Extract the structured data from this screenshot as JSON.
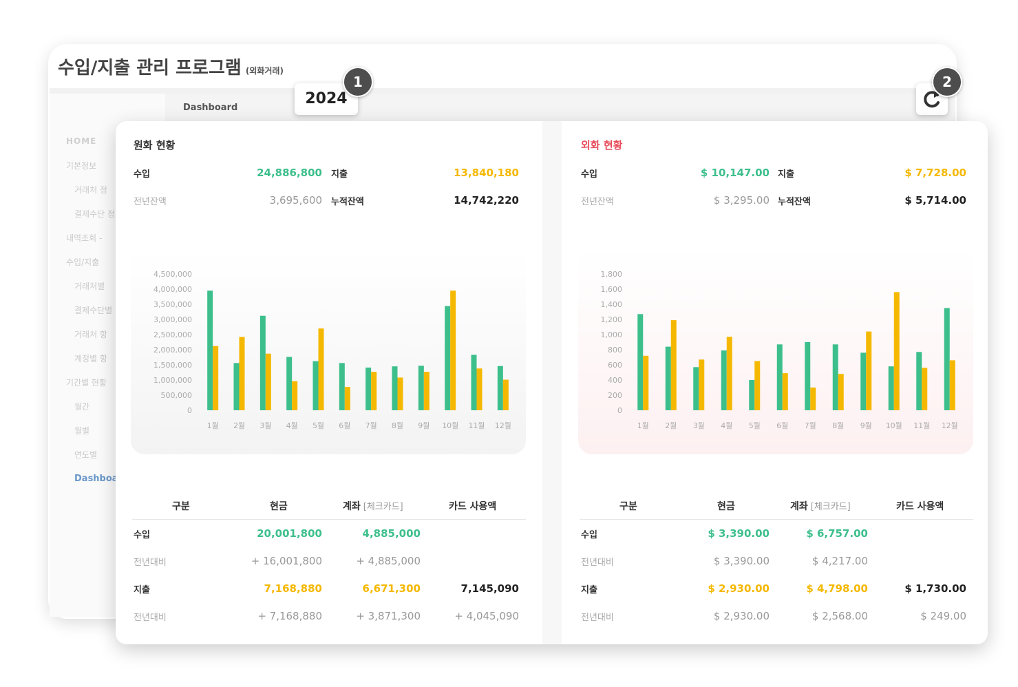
{
  "app": {
    "title": "수입/지출 관리 프로그램",
    "subtitle": "(외화거래)"
  },
  "breadcrumb": "Dashboard",
  "year": "2024",
  "badges": [
    "1",
    "2"
  ],
  "sidebar": {
    "items": [
      {
        "label": "HOME",
        "level": 0
      },
      {
        "label": "기본정보",
        "level": 0
      },
      {
        "label": "거래처 정",
        "level": 1
      },
      {
        "label": "결제수단 정",
        "level": 1
      },
      {
        "label": "내역조회 - ",
        "level": 0
      },
      {
        "label": "수입/지출 ",
        "level": 0
      },
      {
        "label": "거래처별",
        "level": 1
      },
      {
        "label": "결제수단별",
        "level": 1
      },
      {
        "label": "거래처 항",
        "level": 1
      },
      {
        "label": "계정별 항",
        "level": 1
      },
      {
        "label": "기간별 현황",
        "level": 0
      },
      {
        "label": "월간",
        "level": 1
      },
      {
        "label": "월별",
        "level": 1
      },
      {
        "label": "연도별",
        "level": 1
      },
      {
        "label": "Dashboa",
        "level": 1,
        "active": true
      }
    ]
  },
  "colors": {
    "income": "#3dbf8c",
    "expense": "#f5b800",
    "fx_title": "#e84c5a"
  },
  "krw": {
    "title": "원화 현황",
    "summary": {
      "income_label": "수입",
      "income": "24,886,800",
      "expense_label": "지출",
      "expense": "13,840,180",
      "prev_label": "전년잔액",
      "prev": "3,695,600",
      "cum_label": "누적잔액",
      "cum": "14,742,220"
    },
    "table": {
      "headers": [
        "구분",
        "현금",
        "계좌",
        "[체크카드]",
        "카드 사용액"
      ],
      "rows": [
        {
          "label": "수입",
          "cash": "20,001,800",
          "account": "4,885,000",
          "card": ""
        },
        {
          "label": "전년대비",
          "cash": "+ 16,001,800",
          "account": "+ 4,885,000",
          "card": ""
        },
        {
          "label": "지출",
          "cash": "7,168,880",
          "account": "6,671,300",
          "card": "7,145,090"
        },
        {
          "label": "전년대비",
          "cash": "+ 7,168,880",
          "account": "+ 3,871,300",
          "card": "+ 4,045,090"
        }
      ]
    }
  },
  "fx": {
    "title": "외화 현황",
    "summary": {
      "income_label": "수입",
      "income": "$ 10,147.00",
      "expense_label": "지출",
      "expense": "$ 7,728.00",
      "prev_label": "전년잔액",
      "prev": "$ 3,295.00",
      "cum_label": "누적잔액",
      "cum": "$ 5,714.00"
    },
    "table": {
      "headers": [
        "구분",
        "현금",
        "계좌",
        "[체크카드]",
        "카드 사용액"
      ],
      "rows": [
        {
          "label": "수입",
          "cash": "$ 3,390.00",
          "account": "$ 6,757.00",
          "card": ""
        },
        {
          "label": "전년대비",
          "cash": "$ 3,390.00",
          "account": "$ 4,217.00",
          "card": ""
        },
        {
          "label": "지출",
          "cash": "$ 2,930.00",
          "account": "$ 4,798.00",
          "card": "$ 1,730.00"
        },
        {
          "label": "전년대비",
          "cash": "$ 2,930.00",
          "account": "$ 2,568.00",
          "card": "$ 249.00"
        }
      ]
    }
  },
  "chart_data": [
    {
      "type": "bar",
      "categories": [
        "1월",
        "2월",
        "3월",
        "4월",
        "5월",
        "6월",
        "7월",
        "8월",
        "9월",
        "10월",
        "11월",
        "12월"
      ],
      "yticks": [
        "0",
        "500,000",
        "1,000,000",
        "1,500,000",
        "2,000,000",
        "2,500,000",
        "3,000,000",
        "3,500,000",
        "4,000,000",
        "4,500,000"
      ],
      "ylim": [
        0,
        4500000
      ],
      "series": [
        {
          "key": "income",
          "color": "#3dbf8c",
          "values": [
            3950000,
            1560000,
            3120000,
            1760000,
            1620000,
            1560000,
            1410000,
            1450000,
            1470000,
            3440000,
            1830000,
            1460000
          ]
        },
        {
          "key": "expense",
          "color": "#f5b800",
          "values": [
            2120000,
            2420000,
            1870000,
            960000,
            2700000,
            770000,
            1270000,
            1080000,
            1270000,
            3950000,
            1380000,
            1010000
          ]
        }
      ]
    },
    {
      "type": "bar",
      "categories": [
        "1월",
        "2월",
        "3월",
        "4월",
        "5월",
        "6월",
        "7월",
        "8월",
        "9월",
        "10월",
        "11월",
        "12월"
      ],
      "yticks": [
        "0",
        "200",
        "400",
        "600",
        "800",
        "1,000",
        "1,200",
        "1,400",
        "1,600",
        "1,800"
      ],
      "ylim": [
        0,
        1800
      ],
      "series": [
        {
          "key": "income",
          "color": "#3dbf8c",
          "values": [
            1270,
            840,
            570,
            790,
            400,
            870,
            900,
            870,
            760,
            580,
            770,
            1350
          ]
        },
        {
          "key": "expense",
          "color": "#f5b800",
          "values": [
            720,
            1190,
            670,
            970,
            650,
            490,
            300,
            480,
            1040,
            1560,
            560,
            660
          ]
        }
      ]
    }
  ]
}
